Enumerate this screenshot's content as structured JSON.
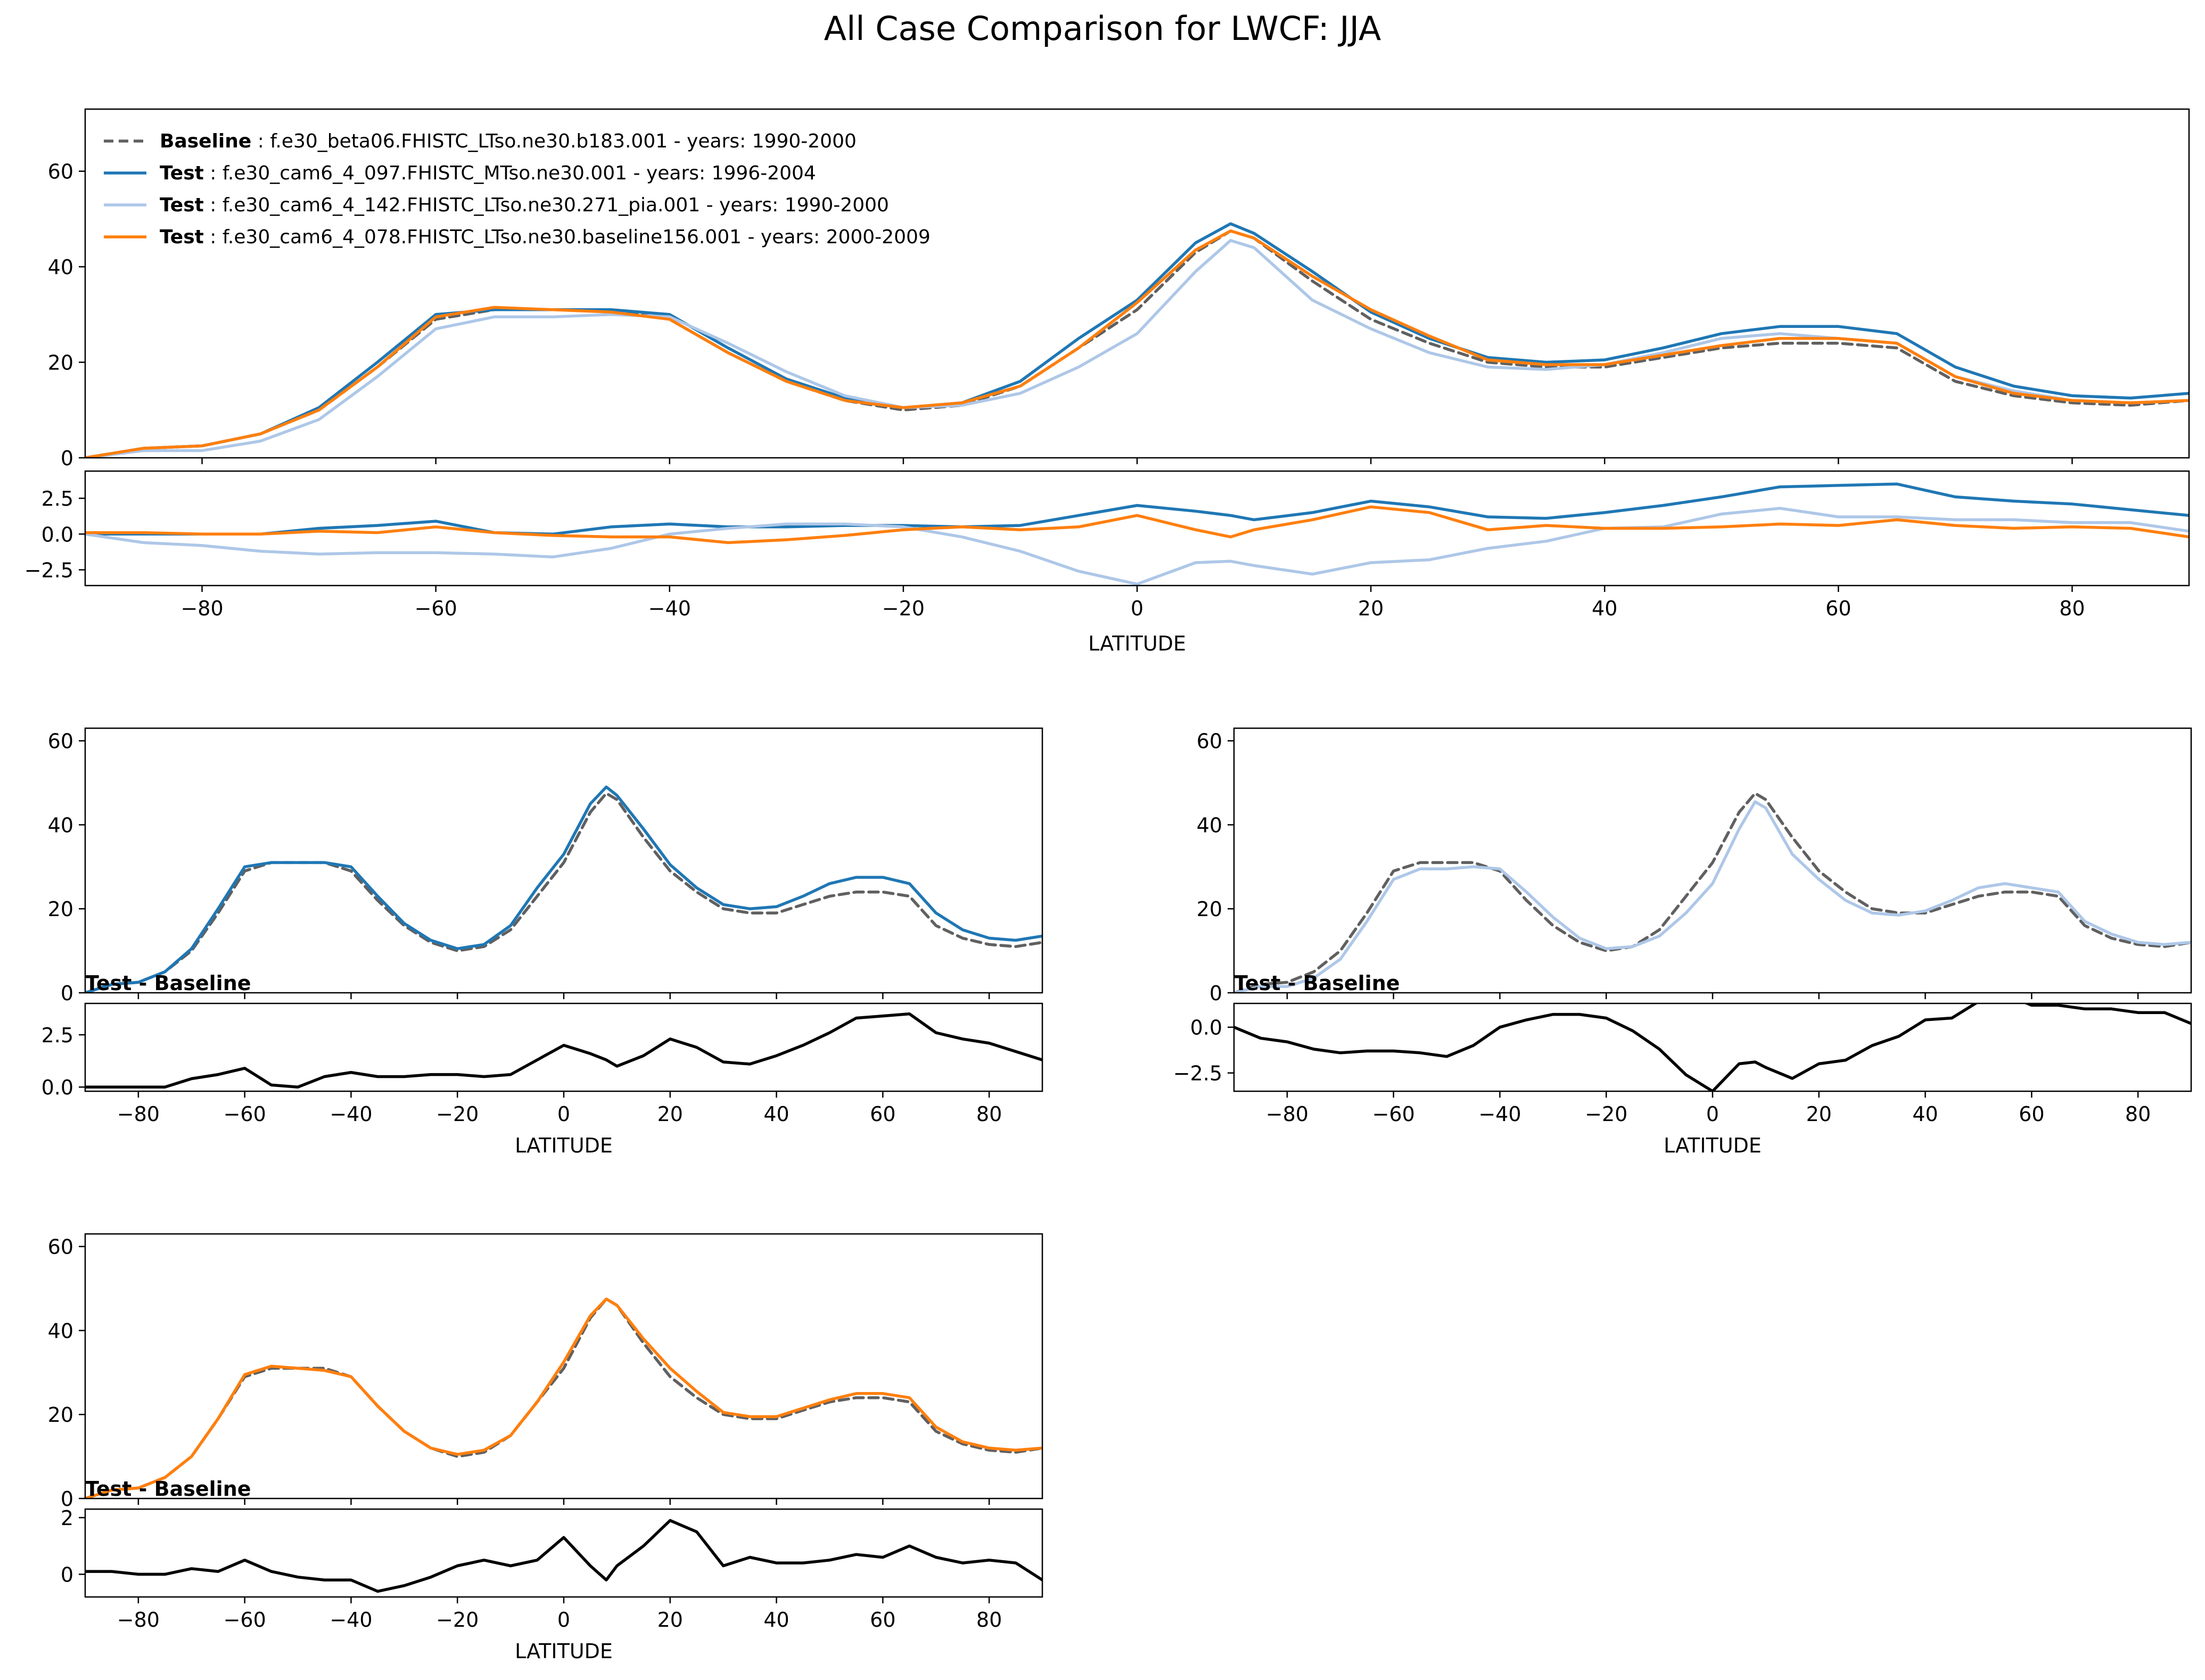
{
  "figure": {
    "title": "All Case Comparison for LWCF: JJA",
    "xlabel": "LATITUDE",
    "diff_label": "Test - Baseline"
  },
  "legend": [
    {
      "role": "Baseline",
      "text": "f.e30_beta06.FHISTC_LTso.ne30.b183.001 - years: 1990-2000",
      "color": "#606060",
      "dash": true
    },
    {
      "role": "Test",
      "text": "f.e30_cam6_4_097.FHISTC_MTso.ne30.001 - years: 1996-2004",
      "color": "#1f77b4",
      "dash": false
    },
    {
      "role": "Test",
      "text": "f.e30_cam6_4_142.FHISTC_LTso.ne30.271_pia.001 - years: 1990-2000",
      "color": "#aec7e8",
      "dash": false
    },
    {
      "role": "Test",
      "text": "f.e30_cam6_4_078.FHISTC_LTso.ne30.baseline156.001 - years: 2000-2009",
      "color": "#ff7f0e",
      "dash": false
    }
  ],
  "chart_data": {
    "type": "line",
    "title": "All Case Comparison for LWCF: JJA",
    "xlabel": "LATITUDE",
    "xlim": [
      -90,
      90
    ],
    "x": [
      -90,
      -85,
      -80,
      -75,
      -70,
      -65,
      -60,
      -55,
      -50,
      -45,
      -40,
      -35,
      -30,
      -25,
      -20,
      -15,
      -10,
      -5,
      0,
      5,
      8,
      10,
      15,
      20,
      25,
      30,
      35,
      40,
      45,
      50,
      55,
      60,
      65,
      70,
      75,
      80,
      85,
      90
    ],
    "series": [
      {
        "name": "Baseline",
        "color": "#606060",
        "dash": true,
        "values": [
          0,
          2,
          2.5,
          5,
          10,
          19,
          29,
          31,
          31,
          31,
          29,
          22,
          16,
          12,
          10,
          11,
          15,
          23,
          31,
          43,
          47.5,
          46,
          37,
          29,
          24,
          20,
          19,
          19,
          21,
          23,
          24,
          24,
          23,
          16,
          13,
          11.5,
          11,
          12
        ]
      },
      {
        "name": "Test 1",
        "color": "#1f77b4",
        "dash": false,
        "values": [
          0,
          2,
          2.5,
          5,
          10.5,
          20,
          30,
          31,
          31,
          31,
          30,
          23,
          16.5,
          12.5,
          10.5,
          11.5,
          16,
          25,
          33,
          45,
          49,
          47,
          39,
          30.5,
          25,
          21,
          20,
          20.5,
          23,
          26,
          27.5,
          27.5,
          26,
          19,
          15,
          13,
          12.5,
          13.5
        ]
      },
      {
        "name": "Test 2",
        "color": "#aec7e8",
        "dash": false,
        "values": [
          0,
          1.5,
          1.5,
          3.5,
          8,
          17,
          27,
          29.5,
          29.5,
          30,
          29.5,
          24,
          18,
          13,
          10.5,
          11,
          13.5,
          19,
          26,
          39,
          45.5,
          44,
          33,
          27,
          22,
          19,
          18.5,
          19.5,
          22,
          25,
          26,
          25,
          24,
          17,
          14,
          12,
          11.5,
          12
        ]
      },
      {
        "name": "Test 3",
        "color": "#ff7f0e",
        "dash": false,
        "values": [
          0,
          2,
          2.5,
          5,
          10,
          19,
          29.5,
          31.5,
          31,
          30.5,
          29,
          22,
          16,
          12,
          10.5,
          11.5,
          15,
          23,
          32.5,
          43.5,
          47.5,
          46,
          38,
          31,
          25.5,
          20.5,
          19.5,
          19.5,
          21.5,
          23.5,
          25,
          25,
          24,
          17,
          13.5,
          12,
          11.5,
          12
        ]
      }
    ],
    "diff_series": [
      {
        "name": "Test 1 - Baseline",
        "color": "#1f77b4",
        "values": [
          0,
          0,
          0,
          0,
          0.4,
          0.6,
          0.9,
          0.1,
          0,
          0.5,
          0.7,
          0.5,
          0.5,
          0.6,
          0.6,
          0.5,
          0.6,
          1.3,
          2.0,
          1.6,
          1.3,
          1.0,
          1.5,
          2.3,
          1.9,
          1.2,
          1.1,
          1.5,
          2.0,
          2.6,
          3.3,
          3.4,
          3.5,
          2.6,
          2.3,
          2.1,
          1.7,
          1.3
        ]
      },
      {
        "name": "Test 2 - Baseline",
        "color": "#aec7e8",
        "values": [
          0,
          -0.6,
          -0.8,
          -1.2,
          -1.4,
          -1.3,
          -1.3,
          -1.4,
          -1.6,
          -1.0,
          0,
          0.4,
          0.7,
          0.7,
          0.5,
          -0.2,
          -1.2,
          -2.6,
          -3.5,
          -2.0,
          -1.9,
          -2.2,
          -2.8,
          -2.0,
          -1.8,
          -1.0,
          -0.5,
          0.4,
          0.5,
          1.4,
          1.8,
          1.2,
          1.2,
          1.0,
          1.0,
          0.8,
          0.8,
          0.2
        ]
      },
      {
        "name": "Test 3 - Baseline",
        "color": "#ff7f0e",
        "values": [
          0.1,
          0.1,
          0,
          0,
          0.2,
          0.1,
          0.5,
          0.1,
          -0.1,
          -0.2,
          -0.2,
          -0.6,
          -0.4,
          -0.1,
          0.3,
          0.5,
          0.3,
          0.5,
          1.3,
          0.3,
          -0.2,
          0.3,
          1.0,
          1.9,
          1.5,
          0.3,
          0.6,
          0.4,
          0.4,
          0.5,
          0.7,
          0.6,
          1.0,
          0.6,
          0.4,
          0.5,
          0.4,
          -0.2
        ]
      }
    ],
    "top_ylim": [
      0,
      73
    ],
    "top_yticks": [
      0,
      20,
      40,
      60
    ],
    "top_diff_ylim": [
      -3.6,
      4.4
    ],
    "top_diff_yticks": [
      -2.5,
      0.0,
      2.5
    ],
    "xticks": [
      -80,
      -60,
      -40,
      -20,
      0,
      20,
      40,
      60,
      80
    ],
    "panels": [
      {
        "test": 1,
        "ylim": [
          0,
          63
        ],
        "yticks": [
          0,
          20,
          40,
          60
        ],
        "diff_ylim": [
          -0.2,
          4.0
        ],
        "diff_yticks": [
          0.0,
          2.5
        ]
      },
      {
        "test": 2,
        "ylim": [
          0,
          63
        ],
        "yticks": [
          0,
          20,
          40,
          60
        ],
        "diff_ylim": [
          -3.5,
          1.3
        ],
        "diff_yticks": [
          -2.5,
          0.0
        ]
      },
      {
        "test": 3,
        "ylim": [
          0,
          63
        ],
        "yticks": [
          0,
          20,
          40,
          60
        ],
        "diff_ylim": [
          -0.8,
          2.3
        ],
        "diff_yticks": [
          0,
          2
        ]
      }
    ]
  }
}
